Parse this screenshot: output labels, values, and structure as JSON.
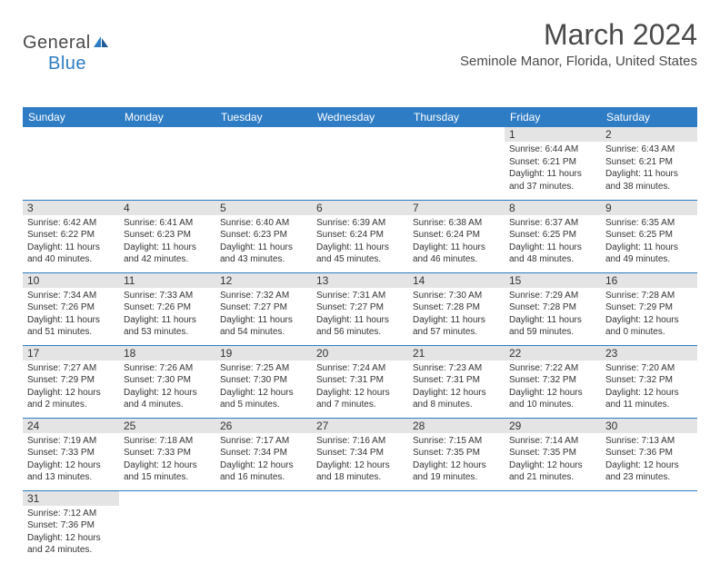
{
  "brand": {
    "text1": "General",
    "text2": "Blue"
  },
  "title": "March 2024",
  "location": "Seminole Manor, Florida, United States",
  "colors": {
    "accent": "#2e7cc4",
    "header_text": "#ffffff",
    "daynum_bg": "#e4e4e4",
    "text": "#333333",
    "page_bg": "#ffffff"
  },
  "typography": {
    "title_fontsize": 32,
    "location_fontsize": 15,
    "dayhead_fontsize": 12,
    "daynum_fontsize": 12,
    "info_fontsize": 10
  },
  "day_headers": [
    "Sunday",
    "Monday",
    "Tuesday",
    "Wednesday",
    "Thursday",
    "Friday",
    "Saturday"
  ],
  "weeks": [
    [
      null,
      null,
      null,
      null,
      null,
      {
        "n": "1",
        "sunrise": "Sunrise: 6:44 AM",
        "sunset": "Sunset: 6:21 PM",
        "day1": "Daylight: 11 hours",
        "day2": "and 37 minutes."
      },
      {
        "n": "2",
        "sunrise": "Sunrise: 6:43 AM",
        "sunset": "Sunset: 6:21 PM",
        "day1": "Daylight: 11 hours",
        "day2": "and 38 minutes."
      }
    ],
    [
      {
        "n": "3",
        "sunrise": "Sunrise: 6:42 AM",
        "sunset": "Sunset: 6:22 PM",
        "day1": "Daylight: 11 hours",
        "day2": "and 40 minutes."
      },
      {
        "n": "4",
        "sunrise": "Sunrise: 6:41 AM",
        "sunset": "Sunset: 6:23 PM",
        "day1": "Daylight: 11 hours",
        "day2": "and 42 minutes."
      },
      {
        "n": "5",
        "sunrise": "Sunrise: 6:40 AM",
        "sunset": "Sunset: 6:23 PM",
        "day1": "Daylight: 11 hours",
        "day2": "and 43 minutes."
      },
      {
        "n": "6",
        "sunrise": "Sunrise: 6:39 AM",
        "sunset": "Sunset: 6:24 PM",
        "day1": "Daylight: 11 hours",
        "day2": "and 45 minutes."
      },
      {
        "n": "7",
        "sunrise": "Sunrise: 6:38 AM",
        "sunset": "Sunset: 6:24 PM",
        "day1": "Daylight: 11 hours",
        "day2": "and 46 minutes."
      },
      {
        "n": "8",
        "sunrise": "Sunrise: 6:37 AM",
        "sunset": "Sunset: 6:25 PM",
        "day1": "Daylight: 11 hours",
        "day2": "and 48 minutes."
      },
      {
        "n": "9",
        "sunrise": "Sunrise: 6:35 AM",
        "sunset": "Sunset: 6:25 PM",
        "day1": "Daylight: 11 hours",
        "day2": "and 49 minutes."
      }
    ],
    [
      {
        "n": "10",
        "sunrise": "Sunrise: 7:34 AM",
        "sunset": "Sunset: 7:26 PM",
        "day1": "Daylight: 11 hours",
        "day2": "and 51 minutes."
      },
      {
        "n": "11",
        "sunrise": "Sunrise: 7:33 AM",
        "sunset": "Sunset: 7:26 PM",
        "day1": "Daylight: 11 hours",
        "day2": "and 53 minutes."
      },
      {
        "n": "12",
        "sunrise": "Sunrise: 7:32 AM",
        "sunset": "Sunset: 7:27 PM",
        "day1": "Daylight: 11 hours",
        "day2": "and 54 minutes."
      },
      {
        "n": "13",
        "sunrise": "Sunrise: 7:31 AM",
        "sunset": "Sunset: 7:27 PM",
        "day1": "Daylight: 11 hours",
        "day2": "and 56 minutes."
      },
      {
        "n": "14",
        "sunrise": "Sunrise: 7:30 AM",
        "sunset": "Sunset: 7:28 PM",
        "day1": "Daylight: 11 hours",
        "day2": "and 57 minutes."
      },
      {
        "n": "15",
        "sunrise": "Sunrise: 7:29 AM",
        "sunset": "Sunset: 7:28 PM",
        "day1": "Daylight: 11 hours",
        "day2": "and 59 minutes."
      },
      {
        "n": "16",
        "sunrise": "Sunrise: 7:28 AM",
        "sunset": "Sunset: 7:29 PM",
        "day1": "Daylight: 12 hours",
        "day2": "and 0 minutes."
      }
    ],
    [
      {
        "n": "17",
        "sunrise": "Sunrise: 7:27 AM",
        "sunset": "Sunset: 7:29 PM",
        "day1": "Daylight: 12 hours",
        "day2": "and 2 minutes."
      },
      {
        "n": "18",
        "sunrise": "Sunrise: 7:26 AM",
        "sunset": "Sunset: 7:30 PM",
        "day1": "Daylight: 12 hours",
        "day2": "and 4 minutes."
      },
      {
        "n": "19",
        "sunrise": "Sunrise: 7:25 AM",
        "sunset": "Sunset: 7:30 PM",
        "day1": "Daylight: 12 hours",
        "day2": "and 5 minutes."
      },
      {
        "n": "20",
        "sunrise": "Sunrise: 7:24 AM",
        "sunset": "Sunset: 7:31 PM",
        "day1": "Daylight: 12 hours",
        "day2": "and 7 minutes."
      },
      {
        "n": "21",
        "sunrise": "Sunrise: 7:23 AM",
        "sunset": "Sunset: 7:31 PM",
        "day1": "Daylight: 12 hours",
        "day2": "and 8 minutes."
      },
      {
        "n": "22",
        "sunrise": "Sunrise: 7:22 AM",
        "sunset": "Sunset: 7:32 PM",
        "day1": "Daylight: 12 hours",
        "day2": "and 10 minutes."
      },
      {
        "n": "23",
        "sunrise": "Sunrise: 7:20 AM",
        "sunset": "Sunset: 7:32 PM",
        "day1": "Daylight: 12 hours",
        "day2": "and 11 minutes."
      }
    ],
    [
      {
        "n": "24",
        "sunrise": "Sunrise: 7:19 AM",
        "sunset": "Sunset: 7:33 PM",
        "day1": "Daylight: 12 hours",
        "day2": "and 13 minutes."
      },
      {
        "n": "25",
        "sunrise": "Sunrise: 7:18 AM",
        "sunset": "Sunset: 7:33 PM",
        "day1": "Daylight: 12 hours",
        "day2": "and 15 minutes."
      },
      {
        "n": "26",
        "sunrise": "Sunrise: 7:17 AM",
        "sunset": "Sunset: 7:34 PM",
        "day1": "Daylight: 12 hours",
        "day2": "and 16 minutes."
      },
      {
        "n": "27",
        "sunrise": "Sunrise: 7:16 AM",
        "sunset": "Sunset: 7:34 PM",
        "day1": "Daylight: 12 hours",
        "day2": "and 18 minutes."
      },
      {
        "n": "28",
        "sunrise": "Sunrise: 7:15 AM",
        "sunset": "Sunset: 7:35 PM",
        "day1": "Daylight: 12 hours",
        "day2": "and 19 minutes."
      },
      {
        "n": "29",
        "sunrise": "Sunrise: 7:14 AM",
        "sunset": "Sunset: 7:35 PM",
        "day1": "Daylight: 12 hours",
        "day2": "and 21 minutes."
      },
      {
        "n": "30",
        "sunrise": "Sunrise: 7:13 AM",
        "sunset": "Sunset: 7:36 PM",
        "day1": "Daylight: 12 hours",
        "day2": "and 23 minutes."
      }
    ],
    [
      {
        "n": "31",
        "sunrise": "Sunrise: 7:12 AM",
        "sunset": "Sunset: 7:36 PM",
        "day1": "Daylight: 12 hours",
        "day2": "and 24 minutes."
      },
      null,
      null,
      null,
      null,
      null,
      null
    ]
  ]
}
